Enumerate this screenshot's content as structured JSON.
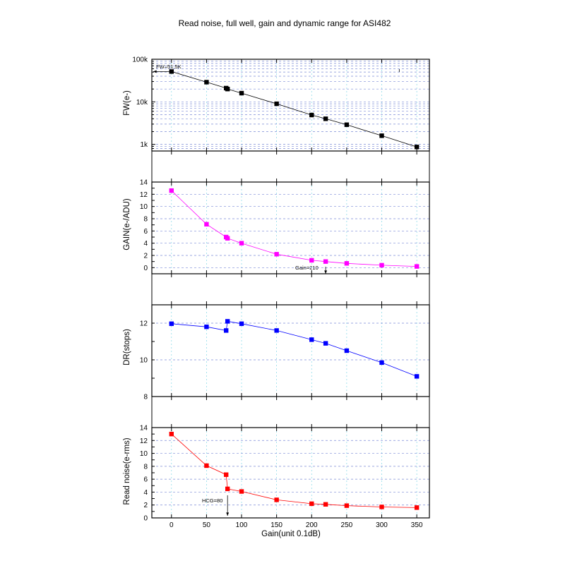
{
  "chart_data": {
    "type": "line",
    "title": "Read noise, full well, gain and dynamic range for ASI482",
    "xlabel": "Gain(unit 0.1dB)",
    "xlim": [
      -28,
      368
    ],
    "x_ticks": [
      0,
      50,
      100,
      150,
      200,
      250,
      300,
      350
    ],
    "panels": [
      {
        "ylabel": "FW(e-)",
        "yscale": "log",
        "ylim": [
          700,
          100000
        ],
        "y_ticks": [
          1000,
          10000,
          100000
        ],
        "y_tick_labels": [
          "1k",
          "10k",
          "100k"
        ],
        "color": "#000000",
        "x": [
          0,
          50,
          78,
          80,
          100,
          150,
          200,
          220,
          250,
          300,
          350
        ],
        "values": [
          51500,
          29000,
          21000,
          20000,
          16000,
          9000,
          4900,
          4000,
          2900,
          1600,
          870
        ],
        "annotation": "FW=51.5K"
      },
      {
        "ylabel": "GAIN(e-/ADU)",
        "yscale": "linear",
        "ylim": [
          -1,
          14
        ],
        "y_ticks": [
          0,
          2,
          4,
          6,
          8,
          10,
          12,
          14
        ],
        "y_tick_labels": [
          "0",
          "2",
          "4",
          "6",
          "8",
          "10",
          "12",
          "14"
        ],
        "color": "#ff00ff",
        "x": [
          0,
          50,
          78,
          80,
          100,
          150,
          200,
          220,
          250,
          300,
          350
        ],
        "values": [
          12.6,
          7.1,
          5.0,
          4.8,
          4.0,
          2.2,
          1.2,
          1.0,
          0.7,
          0.4,
          0.2
        ],
        "annotation": "Gain=210"
      },
      {
        "ylabel": "DR(stops)",
        "yscale": "linear",
        "ylim": [
          8,
          13
        ],
        "y_ticks": [
          8,
          10,
          12
        ],
        "y_tick_labels": [
          "8",
          "10",
          "12"
        ],
        "color": "#0000ff",
        "x": [
          0,
          50,
          78,
          80,
          100,
          150,
          200,
          220,
          250,
          300,
          350
        ],
        "values": [
          11.97,
          11.8,
          11.6,
          12.1,
          11.97,
          11.6,
          11.1,
          10.9,
          10.5,
          9.85,
          9.1
        ]
      },
      {
        "ylabel": "Read noise(e-rms)",
        "yscale": "linear",
        "ylim": [
          0,
          14
        ],
        "y_ticks": [
          0,
          2,
          4,
          6,
          8,
          10,
          12,
          14
        ],
        "y_tick_labels": [
          "0",
          "2",
          "4",
          "6",
          "8",
          "10",
          "12",
          "14"
        ],
        "color": "#ff0000",
        "x": [
          0,
          50,
          78,
          80,
          100,
          150,
          200,
          220,
          250,
          300,
          350
        ],
        "values": [
          13.0,
          8.1,
          6.7,
          4.5,
          4.1,
          2.8,
          2.2,
          2.1,
          1.9,
          1.7,
          1.6
        ],
        "annotation": "HCG=80"
      }
    ],
    "grid": true,
    "legend": "none"
  }
}
